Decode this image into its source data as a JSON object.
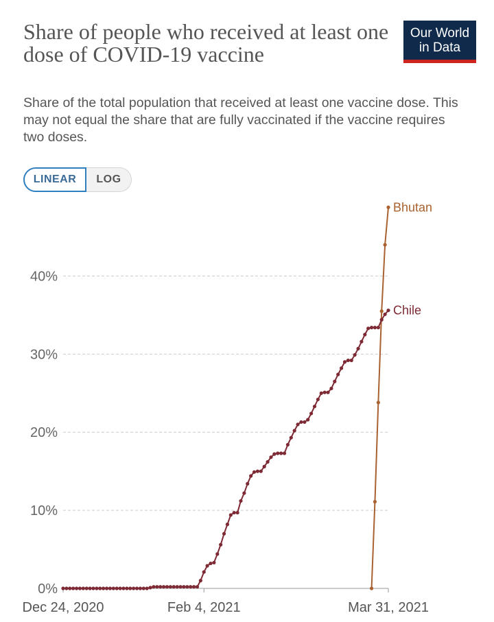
{
  "header": {
    "title": "Share of people who received at least one dose of COVID-19 vaccine",
    "subtitle": "Share of the total population that received at least one vaccine dose. This may not equal the share that are fully vaccinated if the vaccine requires two doses.",
    "logo_line1": "Our World",
    "logo_line2": "in Data"
  },
  "controls": {
    "linear_label": "LINEAR",
    "log_label": "LOG",
    "selected": "LINEAR"
  },
  "colors": {
    "chile": "#7e2a35",
    "bhutan": "#a8612f",
    "grid": "#cccccc",
    "axis": "#999999"
  },
  "chart_data": {
    "type": "line",
    "xaxis_ticks": [
      "Dec 24, 2020",
      "Feb 4, 2021",
      "Mar 31, 2021"
    ],
    "xlim": [
      "2020-12-24",
      "2021-03-31"
    ],
    "yaxis_ticks": [
      "0%",
      "10%",
      "20%",
      "30%",
      "40%"
    ],
    "ylim": [
      0,
      49
    ],
    "grid": "horizontal dashed",
    "series": [
      {
        "name": "Bhutan",
        "points": [
          {
            "date": "2021-03-26",
            "value": 0.0
          },
          {
            "date": "2021-03-27",
            "value": 11.1
          },
          {
            "date": "2021-03-28",
            "value": 23.8
          },
          {
            "date": "2021-03-29",
            "value": 35.5
          },
          {
            "date": "2021-03-30",
            "value": 44.0
          },
          {
            "date": "2021-03-31",
            "value": 48.8
          }
        ]
      },
      {
        "name": "Chile",
        "points": [
          {
            "date": "2020-12-24",
            "value": 0.0
          },
          {
            "date": "2020-12-25",
            "value": 0.0
          },
          {
            "date": "2020-12-26",
            "value": 0.0
          },
          {
            "date": "2020-12-27",
            "value": 0.0
          },
          {
            "date": "2020-12-28",
            "value": 0.0
          },
          {
            "date": "2020-12-29",
            "value": 0.0
          },
          {
            "date": "2020-12-30",
            "value": 0.0
          },
          {
            "date": "2020-12-31",
            "value": 0.0
          },
          {
            "date": "2021-01-01",
            "value": 0.0
          },
          {
            "date": "2021-01-02",
            "value": 0.0
          },
          {
            "date": "2021-01-03",
            "value": 0.0
          },
          {
            "date": "2021-01-04",
            "value": 0.0
          },
          {
            "date": "2021-01-05",
            "value": 0.0
          },
          {
            "date": "2021-01-06",
            "value": 0.0
          },
          {
            "date": "2021-01-07",
            "value": 0.0
          },
          {
            "date": "2021-01-08",
            "value": 0.0
          },
          {
            "date": "2021-01-09",
            "value": 0.0
          },
          {
            "date": "2021-01-10",
            "value": 0.0
          },
          {
            "date": "2021-01-11",
            "value": 0.0
          },
          {
            "date": "2021-01-12",
            "value": 0.0
          },
          {
            "date": "2021-01-13",
            "value": 0.0
          },
          {
            "date": "2021-01-14",
            "value": 0.0
          },
          {
            "date": "2021-01-15",
            "value": 0.0
          },
          {
            "date": "2021-01-16",
            "value": 0.0
          },
          {
            "date": "2021-01-17",
            "value": 0.0
          },
          {
            "date": "2021-01-18",
            "value": 0.0
          },
          {
            "date": "2021-01-19",
            "value": 0.1
          },
          {
            "date": "2021-01-20",
            "value": 0.2
          },
          {
            "date": "2021-01-21",
            "value": 0.2
          },
          {
            "date": "2021-01-22",
            "value": 0.2
          },
          {
            "date": "2021-01-23",
            "value": 0.2
          },
          {
            "date": "2021-01-24",
            "value": 0.2
          },
          {
            "date": "2021-01-25",
            "value": 0.2
          },
          {
            "date": "2021-01-26",
            "value": 0.2
          },
          {
            "date": "2021-01-27",
            "value": 0.2
          },
          {
            "date": "2021-01-28",
            "value": 0.2
          },
          {
            "date": "2021-01-29",
            "value": 0.2
          },
          {
            "date": "2021-01-30",
            "value": 0.2
          },
          {
            "date": "2021-01-31",
            "value": 0.2
          },
          {
            "date": "2021-02-01",
            "value": 0.2
          },
          {
            "date": "2021-02-02",
            "value": 0.2
          },
          {
            "date": "2021-02-03",
            "value": 1.0
          },
          {
            "date": "2021-02-04",
            "value": 2.1
          },
          {
            "date": "2021-02-05",
            "value": 2.9
          },
          {
            "date": "2021-02-06",
            "value": 3.2
          },
          {
            "date": "2021-02-07",
            "value": 3.3
          },
          {
            "date": "2021-02-08",
            "value": 4.4
          },
          {
            "date": "2021-02-09",
            "value": 5.6
          },
          {
            "date": "2021-02-10",
            "value": 7.0
          },
          {
            "date": "2021-02-11",
            "value": 8.2
          },
          {
            "date": "2021-02-12",
            "value": 9.4
          },
          {
            "date": "2021-02-13",
            "value": 9.7
          },
          {
            "date": "2021-02-14",
            "value": 9.7
          },
          {
            "date": "2021-02-15",
            "value": 11.2
          },
          {
            "date": "2021-02-16",
            "value": 12.2
          },
          {
            "date": "2021-02-17",
            "value": 13.4
          },
          {
            "date": "2021-02-18",
            "value": 14.4
          },
          {
            "date": "2021-02-19",
            "value": 14.9
          },
          {
            "date": "2021-02-20",
            "value": 15.0
          },
          {
            "date": "2021-02-21",
            "value": 15.0
          },
          {
            "date": "2021-02-22",
            "value": 15.6
          },
          {
            "date": "2021-02-23",
            "value": 16.2
          },
          {
            "date": "2021-02-24",
            "value": 16.8
          },
          {
            "date": "2021-02-25",
            "value": 17.2
          },
          {
            "date": "2021-02-26",
            "value": 17.3
          },
          {
            "date": "2021-02-27",
            "value": 17.3
          },
          {
            "date": "2021-02-28",
            "value": 17.3
          },
          {
            "date": "2021-03-01",
            "value": 18.4
          },
          {
            "date": "2021-03-02",
            "value": 19.3
          },
          {
            "date": "2021-03-03",
            "value": 20.2
          },
          {
            "date": "2021-03-04",
            "value": 21.0
          },
          {
            "date": "2021-03-05",
            "value": 21.3
          },
          {
            "date": "2021-03-06",
            "value": 21.3
          },
          {
            "date": "2021-03-07",
            "value": 21.6
          },
          {
            "date": "2021-03-08",
            "value": 22.4
          },
          {
            "date": "2021-03-09",
            "value": 23.3
          },
          {
            "date": "2021-03-10",
            "value": 24.2
          },
          {
            "date": "2021-03-11",
            "value": 25.0
          },
          {
            "date": "2021-03-12",
            "value": 25.1
          },
          {
            "date": "2021-03-13",
            "value": 25.1
          },
          {
            "date": "2021-03-14",
            "value": 25.6
          },
          {
            "date": "2021-03-15",
            "value": 26.5
          },
          {
            "date": "2021-03-16",
            "value": 27.4
          },
          {
            "date": "2021-03-17",
            "value": 28.2
          },
          {
            "date": "2021-03-18",
            "value": 29.0
          },
          {
            "date": "2021-03-19",
            "value": 29.2
          },
          {
            "date": "2021-03-20",
            "value": 29.2
          },
          {
            "date": "2021-03-21",
            "value": 29.9
          },
          {
            "date": "2021-03-22",
            "value": 30.7
          },
          {
            "date": "2021-03-23",
            "value": 31.6
          },
          {
            "date": "2021-03-24",
            "value": 32.5
          },
          {
            "date": "2021-03-25",
            "value": 33.3
          },
          {
            "date": "2021-03-26",
            "value": 33.4
          },
          {
            "date": "2021-03-27",
            "value": 33.4
          },
          {
            "date": "2021-03-28",
            "value": 33.4
          },
          {
            "date": "2021-03-29",
            "value": 34.4
          },
          {
            "date": "2021-03-30",
            "value": 35.1
          },
          {
            "date": "2021-03-31",
            "value": 35.6
          }
        ]
      }
    ]
  }
}
